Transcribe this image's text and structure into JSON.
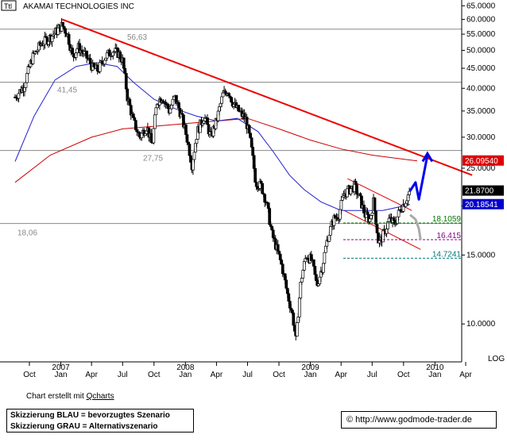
{
  "chart_data": {
    "type": "candlestick",
    "symbol": "Ttl",
    "title": "AKAMAI TECHNOLOGIES INC",
    "y_scale": "log",
    "y_scale_label": "LOG",
    "ylim": [
      8.0,
      66.0
    ],
    "y_ticks": [
      {
        "value": 65,
        "label": "65.0000"
      },
      {
        "value": 60,
        "label": "60.0000"
      },
      {
        "value": 55,
        "label": "55.0000"
      },
      {
        "value": 50,
        "label": "50.0000"
      },
      {
        "value": 45,
        "label": "45.0000"
      },
      {
        "value": 40,
        "label": "40.0000"
      },
      {
        "value": 35,
        "label": "35.0000"
      },
      {
        "value": 30,
        "label": "30.0000"
      },
      {
        "value": 25,
        "label": "25.0000"
      },
      {
        "value": 20,
        "label": "20.0000"
      },
      {
        "value": 15,
        "label": "15.0000"
      },
      {
        "value": 10,
        "label": "10.0000"
      }
    ],
    "x_ticks": [
      {
        "month": "2006-10",
        "label": "Oct",
        "year": ""
      },
      {
        "month": "2007-01",
        "label": "Jan",
        "year": "2007"
      },
      {
        "month": "2007-04",
        "label": "Apr",
        "year": ""
      },
      {
        "month": "2007-07",
        "label": "Jul",
        "year": ""
      },
      {
        "month": "2007-10",
        "label": "Oct",
        "year": ""
      },
      {
        "month": "2008-01",
        "label": "Jan",
        "year": "2008"
      },
      {
        "month": "2008-04",
        "label": "Apr",
        "year": ""
      },
      {
        "month": "2008-07",
        "label": "Jul",
        "year": ""
      },
      {
        "month": "2008-10",
        "label": "Oct",
        "year": ""
      },
      {
        "month": "2009-01",
        "label": "Jan",
        "year": "2009"
      },
      {
        "month": "2009-04",
        "label": "Apr",
        "year": ""
      },
      {
        "month": "2009-07",
        "label": "Jul",
        "year": ""
      },
      {
        "month": "2009-10",
        "label": "Oct",
        "year": ""
      },
      {
        "month": "2010-01",
        "label": "Jan",
        "year": "2010"
      },
      {
        "month": "2010-04",
        "label": "Apr",
        "year": ""
      }
    ],
    "horizontal_levels": [
      {
        "value": 56.63,
        "label": "56,63"
      },
      {
        "value": 41.45,
        "label": "41,45"
      },
      {
        "value": 27.75,
        "label": "27,75"
      },
      {
        "value": 18.06,
        "label": "18,06"
      }
    ],
    "target_levels": [
      {
        "value": 18.1059,
        "label": "18.1059",
        "color": "#007700"
      },
      {
        "value": 16.415,
        "label": "16.415",
        "color": "#880088"
      },
      {
        "value": 14.7241,
        "label": "14.7241",
        "color": "#007777"
      }
    ],
    "price_tags": [
      {
        "value": 26.0954,
        "label": "26.09540",
        "bg": "#e00000",
        "fg": "#ffffff"
      },
      {
        "value": 21.87,
        "label": "21.8700",
        "bg": "#000000",
        "fg": "#ffffff"
      },
      {
        "value": 20.18541,
        "label": "20.18541",
        "bg": "#0000cc",
        "fg": "#ffffff"
      }
    ],
    "price_path": [
      [
        "2006-08-20",
        38.0
      ],
      [
        "2006-09-15",
        40.5
      ],
      [
        "2006-10-10",
        48.0
      ],
      [
        "2006-11-05",
        52.0
      ],
      [
        "2006-12-01",
        54.0
      ],
      [
        "2006-12-20",
        56.0
      ],
      [
        "2007-01-05",
        58.0
      ],
      [
        "2007-01-20",
        55.0
      ],
      [
        "2007-02-05",
        48.0
      ],
      [
        "2007-02-20",
        51.0
      ],
      [
        "2007-03-10",
        49.0
      ],
      [
        "2007-03-25",
        47.0
      ],
      [
        "2007-04-05",
        45.0
      ],
      [
        "2007-04-20",
        44.5
      ],
      [
        "2007-05-10",
        48.0
      ],
      [
        "2007-06-01",
        50.0
      ],
      [
        "2007-06-20",
        49.0
      ],
      [
        "2007-07-01",
        47.0
      ],
      [
        "2007-07-15",
        38.0
      ],
      [
        "2007-08-01",
        33.0
      ],
      [
        "2007-08-20",
        30.0
      ],
      [
        "2007-09-10",
        32.0
      ],
      [
        "2007-09-25",
        28.5
      ],
      [
        "2007-10-10",
        37.0
      ],
      [
        "2007-10-25",
        38.0
      ],
      [
        "2007-11-15",
        35.0
      ],
      [
        "2007-12-01",
        38.0
      ],
      [
        "2007-12-20",
        34.0
      ],
      [
        "2008-01-05",
        30.0
      ],
      [
        "2008-01-20",
        25.5
      ],
      [
        "2008-02-05",
        31.0
      ],
      [
        "2008-02-25",
        34.0
      ],
      [
        "2008-03-15",
        30.0
      ],
      [
        "2008-04-01",
        33.0
      ],
      [
        "2008-04-20",
        38.5
      ],
      [
        "2008-05-05",
        39.5
      ],
      [
        "2008-05-20",
        36.5
      ],
      [
        "2008-06-10",
        34.5
      ],
      [
        "2008-06-25",
        33.5
      ],
      [
        "2008-07-10",
        29.0
      ],
      [
        "2008-07-25",
        23.0
      ],
      [
        "2008-08-10",
        22.5
      ],
      [
        "2008-08-25",
        20.5
      ],
      [
        "2008-09-10",
        17.0
      ],
      [
        "2008-09-25",
        15.5
      ],
      [
        "2008-10-10",
        14.0
      ],
      [
        "2008-10-25",
        12.0
      ],
      [
        "2008-11-10",
        10.5
      ],
      [
        "2008-11-20",
        9.0
      ],
      [
        "2008-12-05",
        13.0
      ],
      [
        "2008-12-20",
        15.0
      ],
      [
        "2009-01-05",
        14.5
      ],
      [
        "2009-01-20",
        12.5
      ],
      [
        "2009-02-05",
        14.0
      ],
      [
        "2009-02-20",
        16.5
      ],
      [
        "2009-03-10",
        18.5
      ],
      [
        "2009-03-25",
        19.0
      ],
      [
        "2009-04-10",
        21.5
      ],
      [
        "2009-04-25",
        22.0
      ],
      [
        "2009-05-10",
        22.5
      ],
      [
        "2009-05-25",
        21.0
      ],
      [
        "2009-06-10",
        19.0
      ],
      [
        "2009-06-25",
        18.5
      ],
      [
        "2009-07-05",
        20.5
      ],
      [
        "2009-07-20",
        16.0
      ],
      [
        "2009-08-05",
        17.0
      ],
      [
        "2009-08-20",
        18.5
      ],
      [
        "2009-09-05",
        18.0
      ],
      [
        "2009-09-20",
        19.5
      ],
      [
        "2009-10-05",
        20.5
      ],
      [
        "2009-10-20",
        21.87
      ]
    ],
    "ma_blue": [
      [
        "2006-08-20",
        26.0
      ],
      [
        "2006-10-15",
        34.0
      ],
      [
        "2006-12-15",
        42.0
      ],
      [
        "2007-02-15",
        45.5
      ],
      [
        "2007-04-15",
        46.5
      ],
      [
        "2007-06-15",
        45.5
      ],
      [
        "2007-08-01",
        41.5
      ],
      [
        "2007-10-01",
        37.5
      ],
      [
        "2007-12-01",
        35.5
      ],
      [
        "2008-02-01",
        34.0
      ],
      [
        "2008-04-01",
        33.0
      ],
      [
        "2008-06-01",
        33.5
      ],
      [
        "2008-08-01",
        31.0
      ],
      [
        "2008-09-15",
        27.5
      ],
      [
        "2008-11-01",
        24.0
      ],
      [
        "2008-12-15",
        22.0
      ],
      [
        "2009-02-01",
        20.5
      ],
      [
        "2009-04-01",
        19.5
      ],
      [
        "2009-06-01",
        19.5
      ],
      [
        "2009-08-01",
        19.5
      ],
      [
        "2009-10-20",
        20.18541
      ]
    ],
    "ma_red": [
      [
        "2006-08-20",
        23.0
      ],
      [
        "2006-12-01",
        27.0
      ],
      [
        "2007-04-01",
        30.0
      ],
      [
        "2007-07-01",
        31.5
      ],
      [
        "2007-10-01",
        32.0
      ],
      [
        "2008-01-01",
        32.5
      ],
      [
        "2008-04-01",
        33.0
      ],
      [
        "2008-07-01",
        33.5
      ],
      [
        "2008-10-01",
        31.5
      ],
      [
        "2009-01-01",
        29.5
      ],
      [
        "2009-04-01",
        28.0
      ],
      [
        "2009-07-01",
        27.0
      ],
      [
        "2009-11-10",
        26.0954
      ]
    ],
    "trendline": [
      [
        "2007-01-05",
        60.0
      ],
      [
        "2010-04-20",
        24.0
      ]
    ],
    "channel_upper": [
      [
        "2009-04-20",
        23.5
      ],
      [
        "2009-10-25",
        19.5
      ]
    ],
    "channel_lower": [
      [
        "2009-04-10",
        19.5
      ],
      [
        "2009-11-20",
        15.5
      ]
    ],
    "scenario_blue": [
      [
        "2009-10-20",
        21.87
      ],
      [
        "2009-11-05",
        23.0
      ],
      [
        "2009-11-15",
        20.8
      ],
      [
        "2009-12-10",
        27.0
      ]
    ],
    "scenario_gray": [
      [
        "2009-10-20",
        19.0
      ],
      [
        "2009-11-05",
        18.5
      ],
      [
        "2009-11-15",
        17.5
      ],
      [
        "2009-11-20",
        16.4
      ]
    ]
  },
  "footer": {
    "created_prefix": "Chart erstellt mit ",
    "created_tool": "Qcharts",
    "legend_line1": "Skizzierung BLAU = bevorzugtes Szenario",
    "legend_line2": "Skizzierung GRAU = Alternativszenario",
    "credit": "© http://www.godmode-trader.de"
  }
}
